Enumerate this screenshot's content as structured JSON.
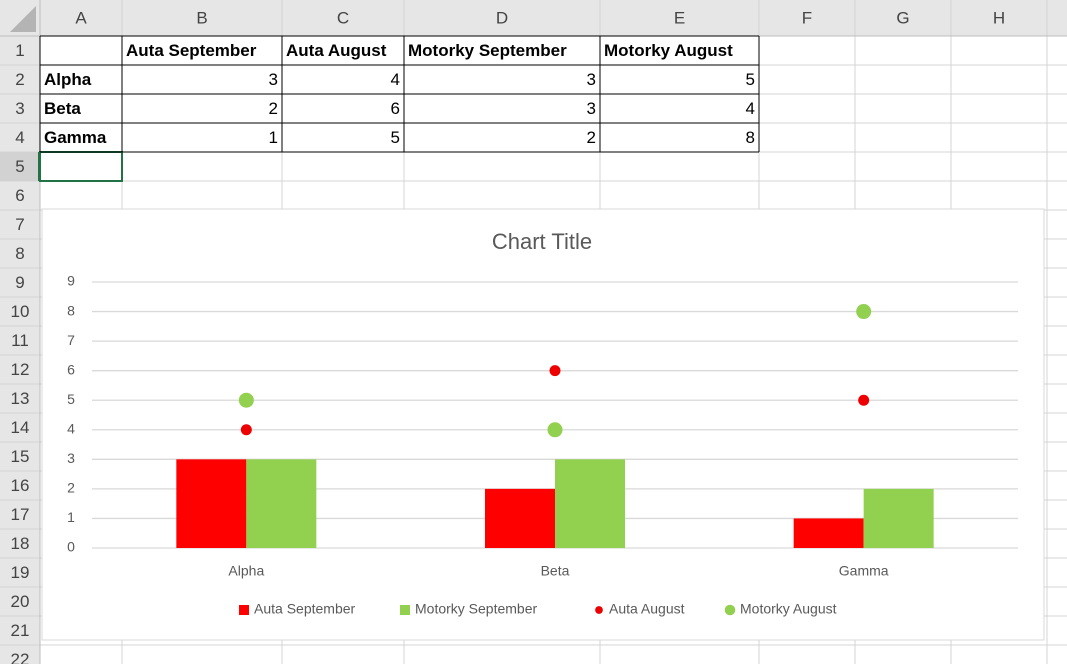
{
  "sheet": {
    "columns": [
      "A",
      "B",
      "C",
      "D",
      "E",
      "F",
      "G",
      "H"
    ],
    "row_numbers": [
      1,
      2,
      3,
      4,
      5,
      6,
      7,
      8,
      9,
      10,
      11,
      12,
      13,
      14,
      15,
      16,
      17,
      18,
      19,
      20,
      21,
      22
    ],
    "active_row": 5
  },
  "table": {
    "header": [
      "Auta September",
      "Auta August",
      "Motorky September",
      "Motorky August"
    ],
    "rows": [
      {
        "label": "Alpha",
        "values": [
          3,
          4,
          3,
          5
        ]
      },
      {
        "label": "Beta",
        "values": [
          2,
          6,
          3,
          4
        ]
      },
      {
        "label": "Gamma",
        "values": [
          1,
          5,
          2,
          8
        ]
      }
    ]
  },
  "chart_data": {
    "type": "combo",
    "title": "Chart Title",
    "categories": [
      "Alpha",
      "Beta",
      "Gamma"
    ],
    "series": [
      {
        "name": "Auta September",
        "kind": "bar",
        "color": "#ff0000",
        "values": [
          3,
          2,
          1
        ]
      },
      {
        "name": "Motorky September",
        "kind": "bar",
        "color": "#92d050",
        "values": [
          3,
          3,
          2
        ]
      },
      {
        "name": "Auta August",
        "kind": "point",
        "color": "#ee0000",
        "marker_size": 5.5,
        "values": [
          4,
          6,
          5
        ]
      },
      {
        "name": "Motorky August",
        "kind": "point",
        "color": "#92d050",
        "marker_size": 7.5,
        "values": [
          5,
          4,
          8
        ]
      }
    ],
    "ylim": [
      0,
      9
    ],
    "yticks": [
      0,
      1,
      2,
      3,
      4,
      5,
      6,
      7,
      8,
      9
    ],
    "grid": true,
    "legend": "bottom"
  }
}
